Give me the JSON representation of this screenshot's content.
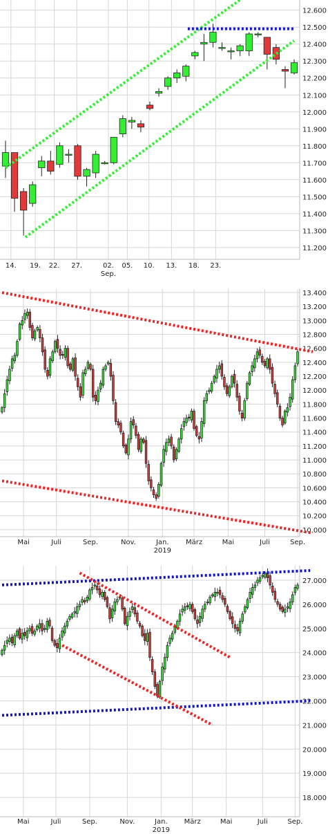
{
  "colors": {
    "up": "#33ee33",
    "down": "#e03a3a",
    "candle_border": "#222222",
    "grid": "#d6d6d6",
    "trend_green": "#33ee33",
    "trend_red": "#ee2222",
    "trend_blue": "#1111dd"
  },
  "chart_data": [
    {
      "type": "candlestick",
      "title": "",
      "grid": true,
      "y_axis_side": "right",
      "ylim": [
        11.13,
        12.66
      ],
      "y_ticks": [
        11.2,
        11.3,
        11.4,
        11.5,
        11.6,
        11.7,
        11.8,
        11.9,
        12.0,
        12.1,
        12.2,
        12.3,
        12.4,
        12.5,
        12.6
      ],
      "y_tick_labels": [
        "11.200",
        "11.300",
        "11.400",
        "11.500",
        "11.600",
        "11.700",
        "11.800",
        "11.900",
        "12.000",
        "12.100",
        "12.200",
        "12.300",
        "12.400",
        "12.500",
        "12.600"
      ],
      "x_labels": [
        {
          "label": "14.",
          "i": 0.6
        },
        {
          "label": "19.",
          "i": 3.3
        },
        {
          "label": "22.",
          "i": 5.4
        },
        {
          "label": "27.",
          "i": 7.9
        },
        {
          "label": "02.",
          "i": 11.4
        },
        {
          "label": "05.",
          "i": 13.5
        },
        {
          "label": "10.",
          "i": 15.9
        },
        {
          "label": "13.",
          "i": 18.4
        },
        {
          "label": "18.",
          "i": 20.9
        },
        {
          "label": "23.",
          "i": 23.3
        }
      ],
      "x_sub_labels": [
        {
          "label": "Sep.",
          "i": 11.4
        }
      ],
      "candles": [
        {
          "o": 11.68,
          "h": 11.83,
          "l": 11.61,
          "c": 11.76
        },
        {
          "o": 11.76,
          "h": 11.76,
          "l": 11.41,
          "c": 11.49
        },
        {
          "o": 11.53,
          "h": 11.55,
          "l": 11.27,
          "c": 11.42
        },
        {
          "o": 11.46,
          "h": 11.59,
          "l": 11.44,
          "c": 11.57
        },
        {
          "o": 11.67,
          "h": 11.74,
          "l": 11.62,
          "c": 11.71
        },
        {
          "o": 11.71,
          "h": 11.77,
          "l": 11.63,
          "c": 11.65
        },
        {
          "o": 11.69,
          "h": 11.82,
          "l": 11.67,
          "c": 11.8
        },
        {
          "o": 11.75,
          "h": 11.78,
          "l": 11.7,
          "c": 11.75
        },
        {
          "o": 11.8,
          "h": 11.81,
          "l": 11.6,
          "c": 11.62
        },
        {
          "o": 11.62,
          "h": 11.67,
          "l": 11.56,
          "c": 11.66
        },
        {
          "o": 11.64,
          "h": 11.77,
          "l": 11.61,
          "c": 11.75
        },
        {
          "o": 11.7,
          "h": 11.71,
          "l": 11.69,
          "c": 11.7
        },
        {
          "o": 11.7,
          "h": 11.85,
          "l": 11.69,
          "c": 11.85
        },
        {
          "o": 11.87,
          "h": 11.98,
          "l": 11.85,
          "c": 11.96
        },
        {
          "o": 11.94,
          "h": 11.97,
          "l": 11.9,
          "c": 11.95
        },
        {
          "o": 11.93,
          "h": 11.95,
          "l": 11.88,
          "c": 11.91
        },
        {
          "o": 12.04,
          "h": 12.06,
          "l": 12.01,
          "c": 12.02
        },
        {
          "o": 12.11,
          "h": 12.14,
          "l": 12.09,
          "c": 12.12
        },
        {
          "o": 12.15,
          "h": 12.21,
          "l": 12.13,
          "c": 12.2
        },
        {
          "o": 12.2,
          "h": 12.25,
          "l": 12.17,
          "c": 12.23
        },
        {
          "o": 12.21,
          "h": 12.28,
          "l": 12.18,
          "c": 12.27
        },
        {
          "o": 12.33,
          "h": 12.36,
          "l": 12.31,
          "c": 12.35
        },
        {
          "o": 12.4,
          "h": 12.46,
          "l": 12.3,
          "c": 12.41
        },
        {
          "o": 12.41,
          "h": 12.52,
          "l": 12.38,
          "c": 12.47
        },
        {
          "o": 12.38,
          "h": 12.41,
          "l": 12.36,
          "c": 12.38
        },
        {
          "o": 12.36,
          "h": 12.38,
          "l": 12.31,
          "c": 12.36
        },
        {
          "o": 12.36,
          "h": 12.4,
          "l": 12.33,
          "c": 12.39
        },
        {
          "o": 12.36,
          "h": 12.47,
          "l": 12.33,
          "c": 12.46
        },
        {
          "o": 12.46,
          "h": 12.47,
          "l": 12.44,
          "c": 12.46
        },
        {
          "o": 12.44,
          "h": 12.44,
          "l": 12.25,
          "c": 12.34
        },
        {
          "o": 12.38,
          "h": 12.4,
          "l": 12.28,
          "c": 12.31
        },
        {
          "o": 12.25,
          "h": 12.27,
          "l": 12.14,
          "c": 12.24
        },
        {
          "o": 12.23,
          "h": 12.31,
          "l": 12.22,
          "c": 12.29
        }
      ],
      "trend_lines": [
        {
          "color": "trend_green",
          "points": [
            [
              0,
              11.67
            ],
            [
              26.5,
              12.68
            ]
          ]
        },
        {
          "color": "trend_green",
          "points": [
            [
              2.2,
              11.26
            ],
            [
              32,
              12.42
            ]
          ]
        },
        {
          "color": "trend_blue",
          "points": [
            [
              20.2,
              12.49
            ],
            [
              32,
              12.49
            ]
          ]
        }
      ]
    },
    {
      "type": "candlestick",
      "title": "",
      "grid": true,
      "y_axis_side": "right",
      "ylim": [
        9.9,
        13.45
      ],
      "y_ticks": [
        10.0,
        10.2,
        10.4,
        10.6,
        10.8,
        11.0,
        11.2,
        11.4,
        11.6,
        11.8,
        12.0,
        12.2,
        12.4,
        12.6,
        12.8,
        13.0,
        13.2,
        13.4
      ],
      "y_tick_labels": [
        "10.000",
        "10.200",
        "10.400",
        "10.600",
        "10.800",
        "11.000",
        "11.200",
        "11.400",
        "11.600",
        "11.800",
        "12.000",
        "12.200",
        "12.400",
        "12.600",
        "12.800",
        "13.000",
        "13.200",
        "13.400"
      ],
      "x_labels": [
        {
          "label": "Mai",
          "i": 8.5
        },
        {
          "label": "Juli",
          "i": 21.5
        },
        {
          "label": "Sep.",
          "i": 35
        },
        {
          "label": "Nov.",
          "i": 50
        },
        {
          "label": "Jan.",
          "i": 63.5
        },
        {
          "label": "März",
          "i": 76
        },
        {
          "label": "Mai",
          "i": 89.5
        },
        {
          "label": "Juli",
          "i": 104
        },
        {
          "label": "Sep.",
          "i": 117
        }
      ],
      "x_sub_labels": [
        {
          "label": "2019",
          "i": 63.5
        }
      ],
      "series_close": [
        11.75,
        11.95,
        12.15,
        12.3,
        12.45,
        12.5,
        12.7,
        12.95,
        13.0,
        13.1,
        13.12,
        12.9,
        12.75,
        12.85,
        12.9,
        12.75,
        12.55,
        12.3,
        12.2,
        12.45,
        12.55,
        12.7,
        12.6,
        12.5,
        12.5,
        12.6,
        12.35,
        12.3,
        12.45,
        12.2,
        12.05,
        11.9,
        12.25,
        12.3,
        12.4,
        12.3,
        11.9,
        11.85,
        12.0,
        12.1,
        12.3,
        12.35,
        12.4,
        12.2,
        11.85,
        11.55,
        11.5,
        11.4,
        11.2,
        11.1,
        11.3,
        11.55,
        11.5,
        11.35,
        11.15,
        11.3,
        11.25,
        10.95,
        10.7,
        10.6,
        10.5,
        10.45,
        10.65,
        10.95,
        11.15,
        11.25,
        11.3,
        11.2,
        11.0,
        11.15,
        11.3,
        11.45,
        11.55,
        11.6,
        11.6,
        11.7,
        11.45,
        11.35,
        11.3,
        11.55,
        11.85,
        11.95,
        12.0,
        12.1,
        12.2,
        12.3,
        12.35,
        12.2,
        12.05,
        11.95,
        12.05,
        12.2,
        12.1,
        11.9,
        11.7,
        11.6,
        11.85,
        12.1,
        12.25,
        12.35,
        12.45,
        12.55,
        12.5,
        12.4,
        12.35,
        12.45,
        12.3,
        12.1,
        11.95,
        11.8,
        11.6,
        11.5,
        11.7,
        11.75,
        11.9,
        12.15,
        12.35,
        12.55
      ],
      "trend_lines": [
        {
          "color": "trend_red",
          "points": [
            [
              0,
              13.4
            ],
            [
              123,
              12.55
            ]
          ]
        },
        {
          "color": "trend_red",
          "points": [
            [
              0,
              10.7
            ],
            [
              123,
              9.95
            ]
          ]
        }
      ]
    },
    {
      "type": "candlestick",
      "title": "",
      "grid": true,
      "y_axis_side": "right",
      "ylim": [
        17.2,
        27.6
      ],
      "y_ticks": [
        18,
        19,
        20,
        21,
        22,
        23,
        24,
        25,
        26,
        27
      ],
      "y_tick_labels": [
        "18.000",
        "19.000",
        "20.000",
        "21.000",
        "22.000",
        "23.000",
        "24.000",
        "25.000",
        "26.000",
        "27.000"
      ],
      "x_labels": [
        {
          "label": "Mai",
          "i": 8.5
        },
        {
          "label": "Juli",
          "i": 21.5
        },
        {
          "label": "Sep.",
          "i": 35
        },
        {
          "label": "Nov.",
          "i": 50
        },
        {
          "label": "Jan.",
          "i": 63.5
        },
        {
          "label": "März",
          "i": 76
        },
        {
          "label": "Mai",
          "i": 89.5
        },
        {
          "label": "Juli",
          "i": 104
        },
        {
          "label": "Sep.",
          "i": 117
        }
      ],
      "x_sub_labels": [
        {
          "label": "2019",
          "i": 63.5
        }
      ],
      "series_close": [
        24.1,
        24.3,
        24.5,
        24.6,
        24.4,
        24.7,
        24.9,
        24.6,
        24.8,
        24.7,
        24.9,
        25.0,
        24.8,
        24.9,
        25.1,
        25.2,
        24.9,
        25.0,
        25.3,
        25.1,
        24.5,
        24.3,
        24.2,
        24.6,
        24.9,
        25.1,
        25.3,
        25.5,
        25.6,
        25.7,
        25.9,
        26.0,
        26.2,
        26.1,
        26.3,
        26.6,
        26.7,
        26.8,
        26.6,
        26.4,
        26.5,
        26.2,
        25.9,
        25.4,
        25.8,
        26.1,
        26.2,
        26.3,
        25.8,
        25.2,
        25.5,
        25.7,
        25.9,
        25.6,
        25.3,
        25.1,
        24.7,
        24.5,
        24.8,
        23.8,
        23.2,
        22.6,
        22.2,
        22.8,
        23.4,
        23.8,
        24.3,
        24.6,
        24.8,
        25.1,
        25.3,
        25.6,
        25.8,
        25.9,
        25.9,
        26.0,
        25.7,
        25.4,
        25.2,
        25.5,
        25.8,
        26.0,
        26.1,
        26.3,
        26.4,
        26.5,
        26.5,
        26.4,
        26.2,
        26.0,
        25.7,
        25.4,
        25.2,
        25.0,
        24.9,
        25.3,
        25.6,
        25.9,
        26.2,
        26.5,
        26.7,
        26.8,
        27.0,
        27.1,
        27.2,
        27.3,
        27.1,
        26.8,
        26.5,
        26.2,
        26.0,
        25.8,
        25.7,
        25.8,
        25.9,
        26.1,
        26.4,
        26.7,
        26.8
      ],
      "trend_lines": [
        {
          "color": "trend_blue",
          "points": [
            [
              0,
              26.8
            ],
            [
              123,
              27.4
            ]
          ]
        },
        {
          "color": "trend_blue",
          "points": [
            [
              0,
              21.4
            ],
            [
              123,
              22.0
            ]
          ]
        },
        {
          "color": "trend_red",
          "points": [
            [
              31,
              27.3
            ],
            [
              91,
              23.8
            ]
          ]
        },
        {
          "color": "trend_red",
          "points": [
            [
              24,
              24.3
            ],
            [
              84,
              21.0
            ]
          ]
        }
      ]
    }
  ]
}
